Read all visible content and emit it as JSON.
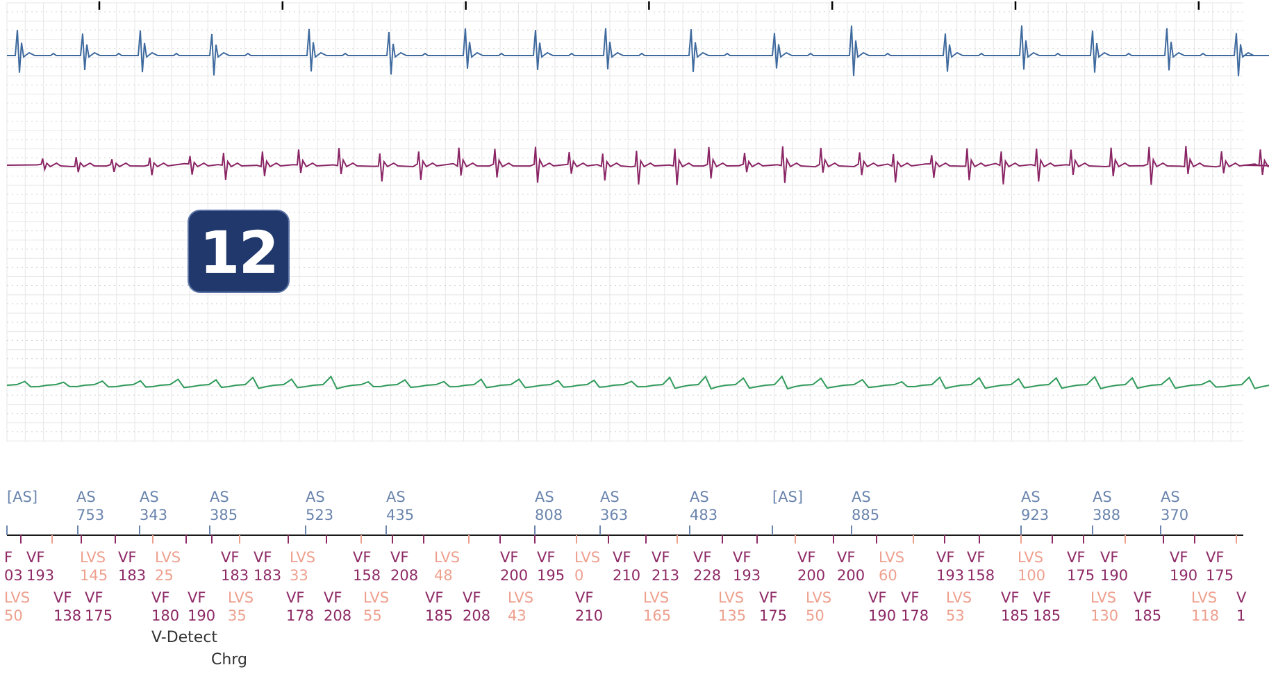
{
  "badge": "12",
  "colors": {
    "grid": "#e6e6e6",
    "grid_dots": "#cfcfcf",
    "trace_atrial": "#3f6a9e",
    "trace_ventricular": "#8a2565",
    "trace_shock": "#2f9a5a",
    "marker_as": "#6a84ad",
    "marker_vf": "#8e2a66",
    "marker_lvs": "#eea08e",
    "annotation": "#333333"
  },
  "chart_data": {
    "type": "line",
    "traces": [
      "atrial-egm",
      "ventricular-egm",
      "shock-egm"
    ],
    "time_ticks": 7,
    "atrial_channel": [
      {
        "label": "[AS]",
        "interval": ""
      },
      {
        "label": "AS",
        "interval": "753"
      },
      {
        "label": "AS",
        "interval": "343"
      },
      {
        "label": "AS",
        "interval": "385"
      },
      {
        "label": "AS",
        "interval": "523"
      },
      {
        "label": "AS",
        "interval": "435"
      },
      {
        "label": "AS",
        "interval": "808"
      },
      {
        "label": "AS",
        "interval": "363"
      },
      {
        "label": "AS",
        "interval": "483"
      },
      {
        "label": "[AS]",
        "interval": ""
      },
      {
        "label": "AS",
        "interval": "885"
      },
      {
        "label": "AS",
        "interval": "923"
      },
      {
        "label": "AS",
        "interval": "388"
      },
      {
        "label": "AS",
        "interval": "370"
      }
    ],
    "ventricular_row1": [
      {
        "label": "F",
        "interval": "03",
        "type": "vf"
      },
      {
        "label": "VF",
        "interval": "193",
        "type": "vf"
      },
      {
        "label": "LVS",
        "interval": "145",
        "type": "lvs"
      },
      {
        "label": "VF",
        "interval": "183",
        "type": "vf"
      },
      {
        "label": "LVS",
        "interval": "25",
        "type": "lvs"
      },
      {
        "label": "VF",
        "interval": "183",
        "type": "vf"
      },
      {
        "label": "VF",
        "interval": "183",
        "type": "vf"
      },
      {
        "label": "LVS",
        "interval": "33",
        "type": "lvs"
      },
      {
        "label": "VF",
        "interval": "158",
        "type": "vf"
      },
      {
        "label": "VF",
        "interval": "208",
        "type": "vf"
      },
      {
        "label": "LVS",
        "interval": "48",
        "type": "lvs"
      },
      {
        "label": "VF",
        "interval": "200",
        "type": "vf"
      },
      {
        "label": "VF",
        "interval": "195",
        "type": "vf"
      },
      {
        "label": "LVS",
        "interval": "0",
        "type": "lvs"
      },
      {
        "label": "VF",
        "interval": "210",
        "type": "vf"
      },
      {
        "label": "VF",
        "interval": "213",
        "type": "vf"
      },
      {
        "label": "VF",
        "interval": "228",
        "type": "vf"
      },
      {
        "label": "VF",
        "interval": "193",
        "type": "vf"
      },
      {
        "label": "VF",
        "interval": "200",
        "type": "vf"
      },
      {
        "label": "VF",
        "interval": "200",
        "type": "vf"
      },
      {
        "label": "LVS",
        "interval": "60",
        "type": "lvs"
      },
      {
        "label": "VF",
        "interval": "193",
        "type": "vf"
      },
      {
        "label": "VF",
        "interval": "158",
        "type": "vf"
      },
      {
        "label": "LVS",
        "interval": "100",
        "type": "lvs"
      },
      {
        "label": "VF",
        "interval": "175",
        "type": "vf"
      },
      {
        "label": "VF",
        "interval": "190",
        "type": "vf"
      },
      {
        "label": "VF",
        "interval": "190",
        "type": "vf"
      },
      {
        "label": "VF",
        "interval": "175",
        "type": "vf"
      }
    ],
    "ventricular_row2": [
      {
        "label": "LVS",
        "interval": "50",
        "type": "lvs"
      },
      {
        "label": "VF",
        "interval": "138",
        "type": "vf"
      },
      {
        "label": "VF",
        "interval": "175",
        "type": "vf"
      },
      {
        "label": "VF",
        "interval": "180",
        "type": "vf"
      },
      {
        "label": "VF",
        "interval": "190",
        "type": "vf"
      },
      {
        "label": "LVS",
        "interval": "35",
        "type": "lvs"
      },
      {
        "label": "VF",
        "interval": "178",
        "type": "vf"
      },
      {
        "label": "VF",
        "interval": "208",
        "type": "vf"
      },
      {
        "label": "LVS",
        "interval": "55",
        "type": "lvs"
      },
      {
        "label": "VF",
        "interval": "185",
        "type": "vf"
      },
      {
        "label": "VF",
        "interval": "208",
        "type": "vf"
      },
      {
        "label": "LVS",
        "interval": "43",
        "type": "lvs"
      },
      {
        "label": "VF",
        "interval": "210",
        "type": "vf"
      },
      {
        "label": "LVS",
        "interval": "165",
        "type": "lvs"
      },
      {
        "label": "LVS",
        "interval": "135",
        "type": "lvs"
      },
      {
        "label": "VF",
        "interval": "175",
        "type": "vf"
      },
      {
        "label": "LVS",
        "interval": "50",
        "type": "lvs"
      },
      {
        "label": "VF",
        "interval": "190",
        "type": "vf"
      },
      {
        "label": "VF",
        "interval": "178",
        "type": "vf"
      },
      {
        "label": "LVS",
        "interval": "53",
        "type": "lvs"
      },
      {
        "label": "VF",
        "interval": "185",
        "type": "vf"
      },
      {
        "label": "VF",
        "interval": "185",
        "type": "vf"
      },
      {
        "label": "LVS",
        "interval": "130",
        "type": "lvs"
      },
      {
        "label": "VF",
        "interval": "185",
        "type": "vf"
      },
      {
        "label": "LVS",
        "interval": "118",
        "type": "lvs"
      },
      {
        "label": "V",
        "interval": "1",
        "type": "vf"
      }
    ],
    "events": [
      {
        "label": "V-Detect"
      },
      {
        "label": "Chrg"
      }
    ]
  }
}
